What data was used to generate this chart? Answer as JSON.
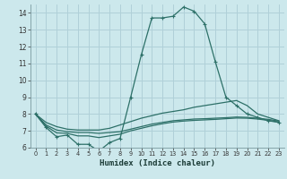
{
  "title": "",
  "xlabel": "Humidex (Indice chaleur)",
  "background_color": "#cce8ec",
  "grid_color": "#b0d0d8",
  "line_color": "#2d7068",
  "x_values": [
    0,
    1,
    2,
    3,
    4,
    5,
    6,
    7,
    8,
    9,
    10,
    11,
    12,
    13,
    14,
    15,
    16,
    17,
    18,
    19,
    20,
    21,
    22,
    23
  ],
  "series1": [
    8.0,
    7.2,
    6.65,
    6.75,
    6.2,
    6.2,
    5.8,
    6.3,
    6.55,
    9.0,
    11.5,
    13.7,
    13.7,
    13.8,
    14.35,
    14.1,
    13.35,
    11.1,
    9.0,
    8.5,
    8.0,
    7.8,
    7.6,
    7.5
  ],
  "series2": [
    8.0,
    7.5,
    7.25,
    7.1,
    7.05,
    7.05,
    7.05,
    7.15,
    7.35,
    7.55,
    7.75,
    7.9,
    8.05,
    8.15,
    8.25,
    8.4,
    8.5,
    8.6,
    8.7,
    8.8,
    8.5,
    8.0,
    7.8,
    7.6
  ],
  "series3": [
    8.0,
    7.35,
    7.05,
    6.95,
    6.9,
    6.9,
    6.85,
    6.9,
    6.95,
    7.1,
    7.25,
    7.4,
    7.5,
    7.6,
    7.65,
    7.7,
    7.72,
    7.75,
    7.78,
    7.82,
    7.8,
    7.75,
    7.68,
    7.58
  ],
  "series4": [
    8.0,
    7.28,
    6.88,
    6.85,
    6.7,
    6.7,
    6.6,
    6.7,
    6.8,
    7.0,
    7.15,
    7.3,
    7.42,
    7.52,
    7.58,
    7.62,
    7.65,
    7.68,
    7.72,
    7.76,
    7.75,
    7.7,
    7.62,
    7.52
  ],
  "ylim": [
    6,
    14.5
  ],
  "yticks": [
    6,
    7,
    8,
    9,
    10,
    11,
    12,
    13,
    14
  ],
  "xlim": [
    -0.5,
    23.5
  ],
  "xticks": [
    0,
    1,
    2,
    3,
    4,
    5,
    6,
    7,
    8,
    9,
    10,
    11,
    12,
    13,
    14,
    15,
    16,
    17,
    18,
    19,
    20,
    21,
    22,
    23
  ]
}
